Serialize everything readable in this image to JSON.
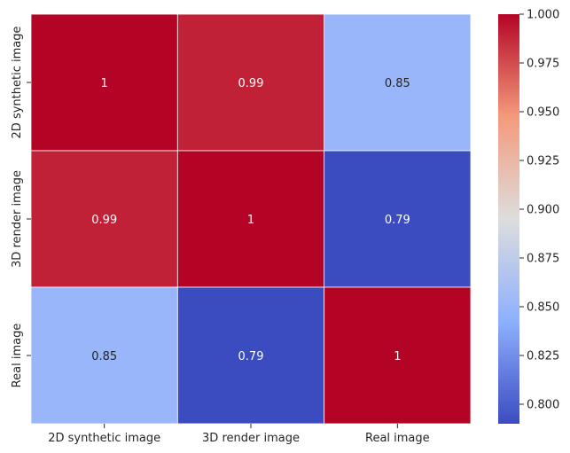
{
  "chart_data": {
    "type": "heatmap",
    "title": "",
    "xlabel": "",
    "ylabel": "",
    "rows": [
      "2D synthetic image",
      "3D render image",
      "Real image"
    ],
    "columns": [
      "2D synthetic image",
      "3D render image",
      "Real image"
    ],
    "values": [
      [
        1.0,
        0.99,
        0.85
      ],
      [
        0.99,
        1.0,
        0.79
      ],
      [
        0.85,
        0.79,
        1.0
      ]
    ],
    "annotations": [
      [
        "1",
        "0.99",
        "0.85"
      ],
      [
        "0.99",
        "1",
        "0.79"
      ],
      [
        "0.85",
        "0.79",
        "1"
      ]
    ],
    "colormap": "coolwarm",
    "color_range": [
      0.79,
      1.0
    ],
    "colorbar_ticks": [
      "0.800",
      "0.825",
      "0.850",
      "0.875",
      "0.900",
      "0.925",
      "0.950",
      "0.975",
      "1.000"
    ],
    "colorbar_tick_values": [
      0.8,
      0.825,
      0.85,
      0.875,
      0.9,
      0.925,
      0.95,
      0.975,
      1.0
    ],
    "cell_separator_color": "#ffffff",
    "colors": {
      "high": "#b40426",
      "mid": "#dddddd",
      "low": "#3b4cc0"
    }
  }
}
